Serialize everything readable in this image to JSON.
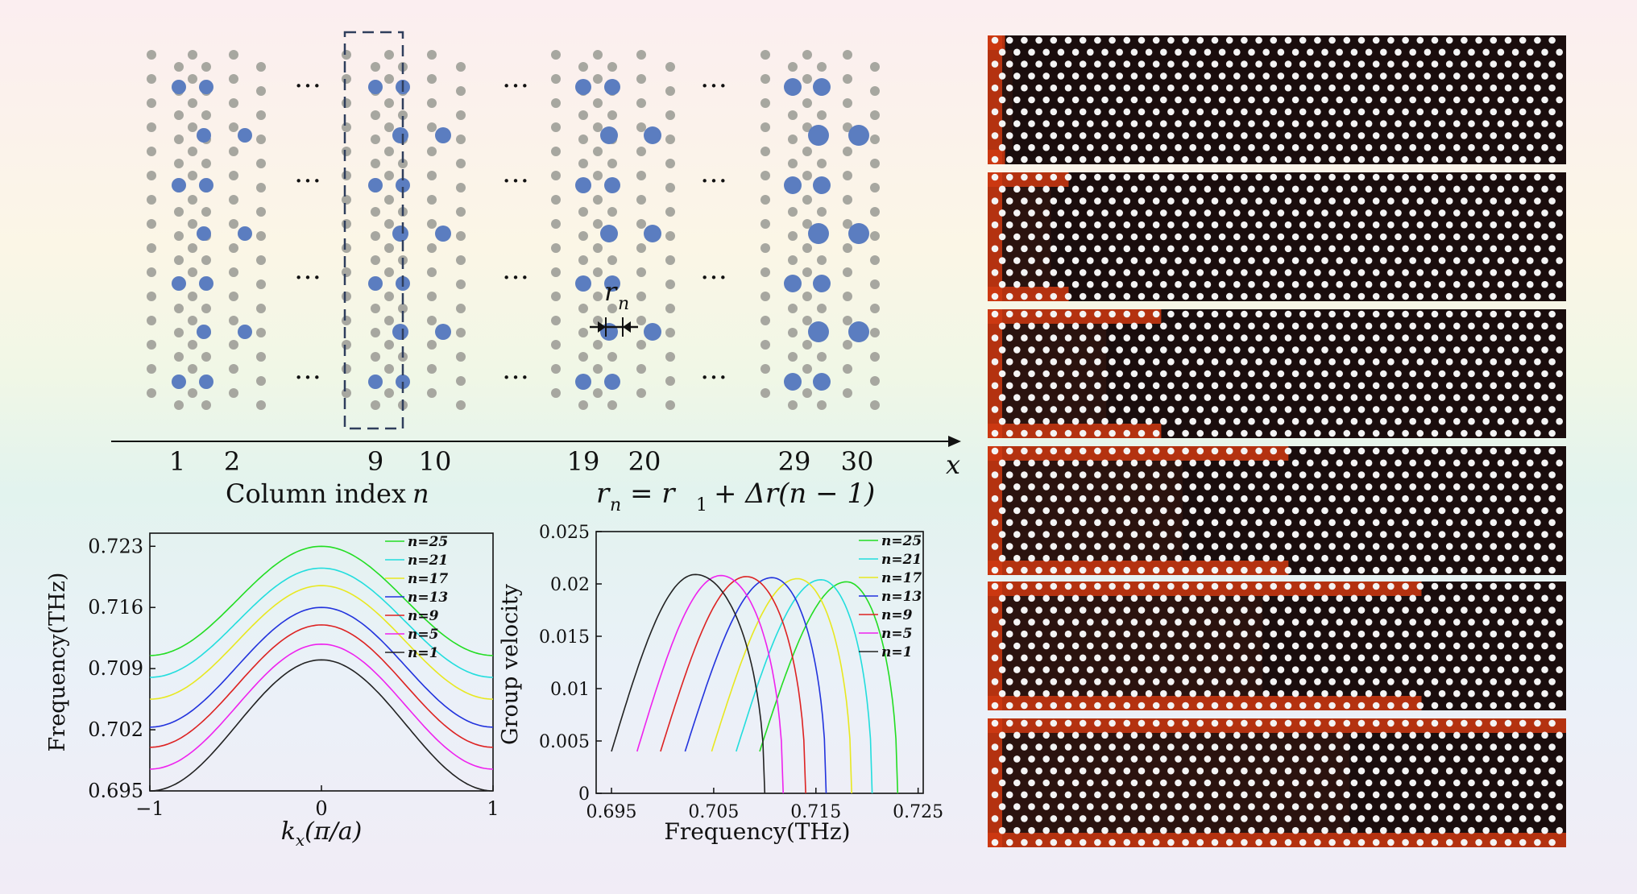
{
  "lattice": {
    "column_numbers": [
      "1",
      "2",
      "9",
      "10",
      "19",
      "20",
      "29",
      "30"
    ],
    "x_axis_label": "x",
    "column_index_label": "Column index",
    "column_index_var": "n",
    "radius_label": "r",
    "radius_sub": "n",
    "radius_formula": "= r",
    "radius_formula_tail": "+ Δr(n − 1)",
    "ellipsis": "…",
    "colors": {
      "blue": "#5b7dc0",
      "gray": "#a7a7a0",
      "box": "#2f3e5c"
    }
  },
  "dispersion_chart": {
    "type": "line",
    "ylabel": "Frequency(THz)",
    "xlabel_main": "k",
    "xlabel_sub": "x",
    "xlabel_tail": "(π/a)",
    "xlim": [
      -1,
      1
    ],
    "ylim": [
      0.695,
      0.7245
    ],
    "x_ticks": [
      "−1",
      "0",
      "1"
    ],
    "x_tick_values": [
      -1,
      0,
      1
    ],
    "y_ticks": [
      "0.695",
      "0.702",
      "0.709",
      "0.716",
      "0.723"
    ],
    "y_tick_values": [
      0.695,
      0.702,
      0.709,
      0.716,
      0.723
    ],
    "series": [
      {
        "name": "n=25",
        "color": "#22dd22",
        "min": 0.7105,
        "max": 0.723
      },
      {
        "name": "n=21",
        "color": "#22dddd",
        "min": 0.708,
        "max": 0.7205
      },
      {
        "name": "n=17",
        "color": "#e8e820",
        "min": 0.7055,
        "max": 0.7185
      },
      {
        "name": "n=13",
        "color": "#2233dd",
        "min": 0.7023,
        "max": 0.716
      },
      {
        "name": "n=9",
        "color": "#dd2222",
        "min": 0.7,
        "max": 0.714
      },
      {
        "name": "n=5",
        "color": "#ee22ee",
        "min": 0.6975,
        "max": 0.7118
      },
      {
        "name": "n=1",
        "color": "#222222",
        "min": 0.695,
        "max": 0.71
      }
    ]
  },
  "group_velocity_chart": {
    "type": "line",
    "ylabel": "Group velocity",
    "xlabel": "Frequency(THz)",
    "xlim": [
      0.6935,
      0.7255
    ],
    "ylim": [
      0,
      0.025
    ],
    "x_ticks": [
      "0.695",
      "0.705",
      "0.715",
      "0.725"
    ],
    "x_tick_values": [
      0.695,
      0.705,
      0.715,
      0.725
    ],
    "y_ticks": [
      "0",
      "0.005",
      "0.01",
      "0.015",
      "0.02",
      "0.025"
    ],
    "y_tick_values": [
      0,
      0.005,
      0.01,
      0.015,
      0.02,
      0.025
    ],
    "series": [
      {
        "name": "n=25",
        "color": "#22dd22",
        "f0": 0.7095,
        "fpeak": 0.718,
        "f1": 0.723,
        "vmax": 0.0202,
        "vstart": 0.004
      },
      {
        "name": "n=21",
        "color": "#22dddd",
        "f0": 0.7072,
        "fpeak": 0.7155,
        "f1": 0.7205,
        "vmax": 0.0204,
        "vstart": 0.004
      },
      {
        "name": "n=17",
        "color": "#e8e820",
        "f0": 0.7048,
        "fpeak": 0.7132,
        "f1": 0.7185,
        "vmax": 0.0205,
        "vstart": 0.004
      },
      {
        "name": "n=13",
        "color": "#2233dd",
        "f0": 0.7022,
        "fpeak": 0.7107,
        "f1": 0.716,
        "vmax": 0.0206,
        "vstart": 0.004
      },
      {
        "name": "n=9",
        "color": "#dd2222",
        "f0": 0.6998,
        "fpeak": 0.7082,
        "f1": 0.714,
        "vmax": 0.0207,
        "vstart": 0.004
      },
      {
        "name": "n=5",
        "color": "#ee22ee",
        "f0": 0.6975,
        "fpeak": 0.7057,
        "f1": 0.7118,
        "vmax": 0.0208,
        "vstart": 0.004
      },
      {
        "name": "n=1",
        "color": "#222222",
        "f0": 0.695,
        "fpeak": 0.7032,
        "f1": 0.71,
        "vmax": 0.0209,
        "vstart": 0.004
      }
    ]
  },
  "field_maps": {
    "count": 6,
    "hot_extent": [
      0.03,
      0.14,
      0.3,
      0.52,
      0.75,
      1.0
    ],
    "colors": {
      "bg": "#1a0d0d",
      "hole": "#f4f4f4",
      "hot": "#d03a12",
      "warm": "#f5b733"
    }
  }
}
